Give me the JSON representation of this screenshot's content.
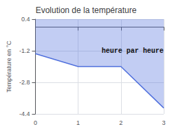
{
  "chart_data": {
    "type": "area",
    "title": "Evolution de la température",
    "ylabel": "Température en °C",
    "annotations": [
      {
        "text": "heure par heure",
        "x": 1.55,
        "y": -1.05
      }
    ],
    "x": [
      0,
      1.0,
      2.0,
      3.0
    ],
    "values": [
      -1.35,
      -2.0,
      -2.0,
      -4.1
    ],
    "xlim": [
      0,
      3
    ],
    "ylim": [
      -4.4,
      0.4
    ],
    "xticks": [
      0,
      1,
      2,
      3
    ],
    "yticks": [
      0.4,
      -1.2,
      -2.8,
      -4.4
    ],
    "grid": true
  }
}
